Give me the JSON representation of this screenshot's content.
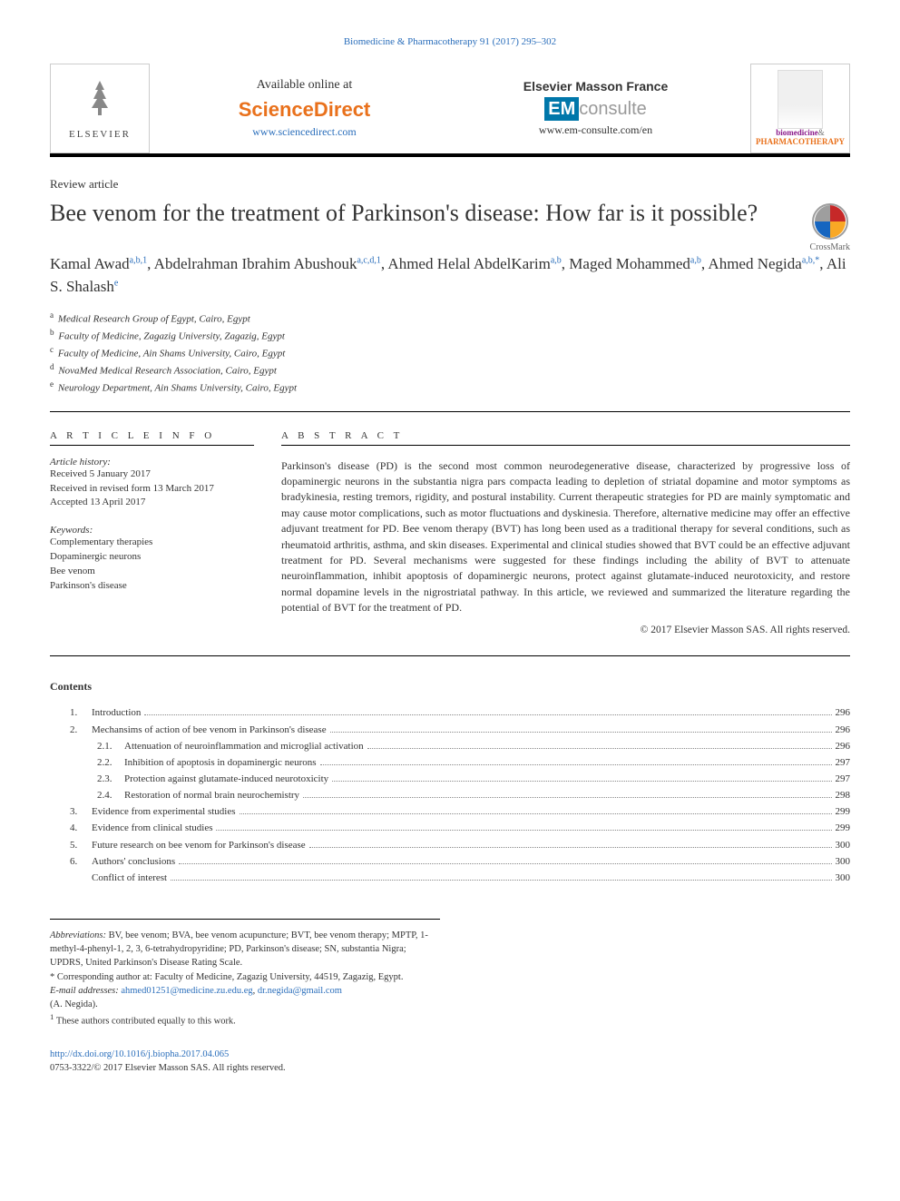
{
  "journal_header_citation": "Biomedicine & Pharmacotherapy 91 (2017) 295–302",
  "masthead": {
    "elsevier": "ELSEVIER",
    "available_online": "Available online at",
    "sciencedirect": "ScienceDirect",
    "sd_url": "www.sciencedirect.com",
    "em_france": "Elsevier Masson France",
    "em_prefix": "EM",
    "em_consulte": "consulte",
    "em_url": "www.em-consulte.com/en",
    "journal_bio": "biomedicine",
    "journal_pharm": "PHARMACOTHERAPY"
  },
  "article_type": "Review article",
  "title": "Bee venom for the treatment of Parkinson's disease: How far is it possible?",
  "crossmark_label": "CrossMark",
  "authors_html": "Kamal Awad<sup>a,b,1</sup>, Abdelrahman Ibrahim Abushouk<sup>a,c,d,1</sup>, Ahmed Helal AbdelKarim<sup>a,b</sup>, Maged Mohammed<sup>a,b</sup>, Ahmed Negida<sup>a,b,*</sup>, Ali S. Shalash<sup>e</sup>",
  "affiliations": [
    {
      "sup": "a",
      "text": "Medical Research Group of Egypt, Cairo, Egypt"
    },
    {
      "sup": "b",
      "text": "Faculty of Medicine, Zagazig University, Zagazig, Egypt"
    },
    {
      "sup": "c",
      "text": "Faculty of Medicine, Ain Shams University, Cairo, Egypt"
    },
    {
      "sup": "d",
      "text": "NovaMed Medical Research Association, Cairo, Egypt"
    },
    {
      "sup": "e",
      "text": "Neurology Department, Ain Shams University, Cairo, Egypt"
    }
  ],
  "info": {
    "heading": "A R T I C L E   I N F O",
    "history_label": "Article history:",
    "history": [
      "Received 5 January 2017",
      "Received in revised form 13 March 2017",
      "Accepted 13 April 2017"
    ],
    "keywords_label": "Keywords:",
    "keywords": [
      "Complementary therapies",
      "Dopaminergic neurons",
      "Bee venom",
      "Parkinson's disease"
    ]
  },
  "abstract": {
    "heading": "A B S T R A C T",
    "text": "Parkinson's disease (PD) is the second most common neurodegenerative disease, characterized by progressive loss of dopaminergic neurons in the substantia nigra pars compacta leading to depletion of striatal dopamine and motor symptoms as bradykinesia, resting tremors, rigidity, and postural instability. Current therapeutic strategies for PD are mainly symptomatic and may cause motor complications, such as motor fluctuations and dyskinesia. Therefore, alternative medicine may offer an effective adjuvant treatment for PD. Bee venom therapy (BVT) has long been used as a traditional therapy for several conditions, such as rheumatoid arthritis, asthma, and skin diseases. Experimental and clinical studies showed that BVT could be an effective adjuvant treatment for PD. Several mechanisms were suggested for these findings including the ability of BVT to attenuate neuroinflammation, inhibit apoptosis of dopaminergic neurons, protect against glutamate-induced neurotoxicity, and restore normal dopamine levels in the nigrostriatal pathway. In this article, we reviewed and summarized the literature regarding the potential of BVT for the treatment of PD.",
    "copyright": "© 2017 Elsevier Masson SAS. All rights reserved."
  },
  "contents": {
    "heading": "Contents",
    "items": [
      {
        "num": "1.",
        "title": "Introduction",
        "page": "296",
        "indent": 1
      },
      {
        "num": "2.",
        "title": "Mechansims of action of bee venom in Parkinson's disease",
        "page": "296",
        "indent": 1
      },
      {
        "num": "2.1.",
        "title": "Attenuation of neuroinflammation and microglial activation",
        "page": "296",
        "indent": 2
      },
      {
        "num": "2.2.",
        "title": "Inhibition of apoptosis in dopaminergic neurons",
        "page": "297",
        "indent": 2
      },
      {
        "num": "2.3.",
        "title": "Protection against glutamate-induced neurotoxicity",
        "page": "297",
        "indent": 2
      },
      {
        "num": "2.4.",
        "title": "Restoration of normal brain neurochemistry",
        "page": "298",
        "indent": 2
      },
      {
        "num": "3.",
        "title": "Evidence from experimental studies",
        "page": "299",
        "indent": 1
      },
      {
        "num": "4.",
        "title": "Evidence from clinical studies",
        "page": "299",
        "indent": 1
      },
      {
        "num": "5.",
        "title": "Future research on bee venom for Parkinson's disease",
        "page": "300",
        "indent": 1
      },
      {
        "num": "6.",
        "title": "Authors' conclusions",
        "page": "300",
        "indent": 1
      },
      {
        "num": "",
        "title": "Conflict of interest",
        "page": "300",
        "indent": 1,
        "noNum": true
      }
    ]
  },
  "footnotes": {
    "abbrev_label": "Abbreviations:",
    "abbrev_text": " BV, bee venom; BVA, bee venom acupuncture; BVT, bee venom therapy; MPTP, 1-methyl-4-phenyl-1, 2, 3, 6-tetrahydropyridine; PD, Parkinson's disease; SN, substantia Nigra; UPDRS, United Parkinson's Disease Rating Scale.",
    "corr": "* Corresponding author at: Faculty of Medicine, Zagazig University, 44519, Zagazig, Egypt.",
    "email_label": "E-mail addresses:",
    "email1": "ahmed01251@medicine.zu.edu.eg",
    "email2": "dr.negida@gmail.com",
    "email_name": "(A. Negida).",
    "contrib": "These authors contributed equally to this work.",
    "contrib_sup": "1"
  },
  "doi": {
    "url": "http://dx.doi.org/10.1016/j.biopha.2017.04.065",
    "line": "0753-3322/© 2017 Elsevier Masson SAS. All rights reserved."
  },
  "colors": {
    "link": "#2a6ebb",
    "orange": "#e9711c",
    "rule": "#000000",
    "purple": "#8b1a8b",
    "teal": "#0077aa",
    "crossmark_red": "#c62828",
    "crossmark_blue": "#1565c0",
    "crossmark_yellow": "#f9a825",
    "crossmark_gray": "#9e9e9e"
  }
}
